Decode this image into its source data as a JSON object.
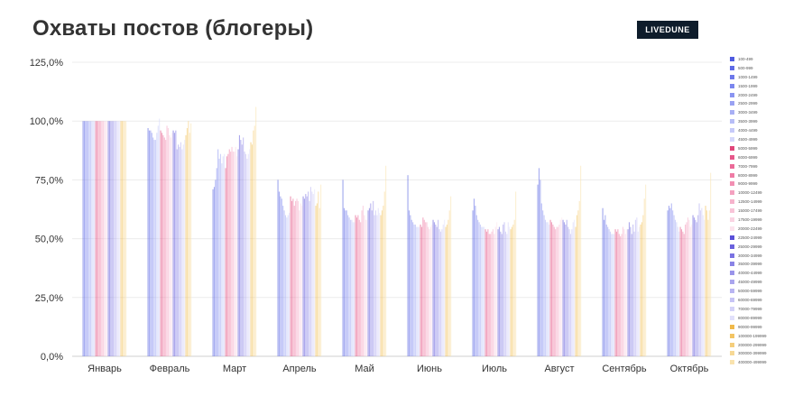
{
  "title": "Охваты постов (блогеры)",
  "brand": "LIVEDUNE",
  "chart_data": {
    "type": "bar",
    "title": "Охваты постов (блогеры)",
    "xlabel": "",
    "ylabel": "",
    "ylim": [
      0,
      125
    ],
    "yticks": [
      "0,0%",
      "25,0%",
      "50,0%",
      "75,0%",
      "100,0%",
      "125,0%"
    ],
    "grid": true,
    "legend_position": "right",
    "categories": [
      "Январь",
      "Февраль",
      "Март",
      "Апрель",
      "Май",
      "Июнь",
      "Июль",
      "Август",
      "Сентябрь",
      "Октябрь"
    ],
    "series": [
      {
        "name": "100-499",
        "color": "#4f5be0",
        "values": [
          100,
          97,
          71,
          75,
          75,
          77,
          62,
          73,
          63,
          62
        ]
      },
      {
        "name": "500-999",
        "color": "#5e6ae6",
        "values": [
          100,
          96,
          72,
          70,
          63,
          62,
          67,
          80,
          58,
          64
        ]
      },
      {
        "name": "1000-1499",
        "color": "#6d78ea",
        "values": [
          100,
          96,
          75,
          68,
          62,
          60,
          64,
          75,
          60,
          63
        ]
      },
      {
        "name": "1500-1999",
        "color": "#7b86ee",
        "values": [
          100,
          95,
          80,
          67,
          62,
          58,
          60,
          65,
          56,
          65
        ]
      },
      {
        "name": "2000-2499",
        "color": "#8a94f1",
        "values": [
          100,
          93,
          88,
          64,
          60,
          57,
          58,
          62,
          55,
          62
        ]
      },
      {
        "name": "2500-2999",
        "color": "#99a1f3",
        "values": [
          100,
          92,
          84,
          62,
          59,
          56,
          57,
          60,
          54,
          60
        ]
      },
      {
        "name": "3000-3499",
        "color": "#a8aff5",
        "values": [
          100,
          92,
          86,
          60,
          58,
          56,
          56,
          58,
          53,
          58
        ]
      },
      {
        "name": "3500-3999",
        "color": "#b7bdf7",
        "values": [
          100,
          95,
          82,
          59,
          58,
          55,
          55,
          57,
          52,
          57
        ]
      },
      {
        "name": "4000-4499",
        "color": "#c6caf9",
        "values": [
          100,
          98,
          85,
          60,
          57,
          55,
          55,
          57,
          52,
          55
        ]
      },
      {
        "name": "4500-4999",
        "color": "#d5d8fb",
        "values": [
          100,
          101,
          86,
          61,
          57,
          55,
          55,
          56,
          52,
          53
        ]
      },
      {
        "name": "5000-5999",
        "color": "#e0467a",
        "values": [
          100,
          96,
          80,
          68,
          60,
          56,
          54,
          58,
          54,
          55
        ]
      },
      {
        "name": "6000-6999",
        "color": "#e6578a",
        "values": [
          100,
          95,
          85,
          66,
          59,
          55,
          53,
          57,
          53,
          54
        ]
      },
      {
        "name": "7000-7999",
        "color": "#eb6a98",
        "values": [
          100,
          94,
          86,
          67,
          60,
          59,
          54,
          56,
          54,
          53
        ]
      },
      {
        "name": "8000-8999",
        "color": "#ef7ca5",
        "values": [
          100,
          93,
          88,
          64,
          58,
          58,
          52,
          55,
          52,
          52
        ]
      },
      {
        "name": "9000-9999",
        "color": "#f28fb3",
        "values": [
          100,
          92,
          87,
          66,
          57,
          57,
          52,
          54,
          51,
          56
        ]
      },
      {
        "name": "10000-12499",
        "color": "#f4a1c0",
        "values": [
          100,
          98,
          89,
          67,
          62,
          57,
          53,
          55,
          52,
          57
        ]
      },
      {
        "name": "12500-14999",
        "color": "#f6b3cc",
        "values": [
          100,
          97,
          87,
          66,
          64,
          55,
          54,
          55,
          55,
          59
        ]
      },
      {
        "name": "15000-17499",
        "color": "#f8c4d8",
        "values": [
          100,
          94,
          87,
          62,
          60,
          54,
          52,
          56,
          54,
          58
        ]
      },
      {
        "name": "17500-19999",
        "color": "#fad4e3",
        "values": [
          100,
          93,
          89,
          65,
          58,
          55,
          55,
          58,
          52,
          55
        ]
      },
      {
        "name": "20000-22499",
        "color": "#fce3ed",
        "values": [
          100,
          95,
          85,
          64,
          58,
          56,
          57,
          59,
          54,
          56
        ]
      },
      {
        "name": "22500-24999",
        "color": "#5a50d8",
        "values": [
          100,
          96,
          88,
          68,
          62,
          58,
          54,
          58,
          54,
          60
        ]
      },
      {
        "name": "25000-29999",
        "color": "#6a61dd",
        "values": [
          100,
          95,
          94,
          67,
          63,
          57,
          55,
          57,
          57,
          59
        ]
      },
      {
        "name": "30000-34999",
        "color": "#7a72e2",
        "values": [
          100,
          96,
          92,
          69,
          65,
          56,
          53,
          56,
          55,
          58
        ]
      },
      {
        "name": "35000-39999",
        "color": "#8a83e6",
        "values": [
          100,
          88,
          90,
          68,
          62,
          55,
          52,
          58,
          52,
          57
        ]
      },
      {
        "name": "40000-44999",
        "color": "#9a94ea",
        "values": [
          100,
          90,
          93,
          70,
          66,
          58,
          56,
          55,
          56,
          60
        ]
      },
      {
        "name": "45000-49999",
        "color": "#aaa5ee",
        "values": [
          100,
          89,
          87,
          66,
          60,
          54,
          57,
          54,
          53,
          65
        ]
      },
      {
        "name": "50000-59999",
        "color": "#b9b5f2",
        "values": [
          100,
          91,
          86,
          72,
          62,
          53,
          53,
          52,
          58,
          62
        ]
      },
      {
        "name": "60000-69999",
        "color": "#c7c4f5",
        "values": [
          100,
          88,
          84,
          70,
          60,
          54,
          52,
          54,
          59,
          63
        ]
      },
      {
        "name": "70000-79999",
        "color": "#d4d2f8",
        "values": [
          100,
          90,
          86,
          69,
          63,
          56,
          57,
          57,
          53,
          60
        ]
      },
      {
        "name": "80000-89999",
        "color": "#e1e0fb",
        "values": [
          100,
          92,
          88,
          71,
          61,
          58,
          55,
          58,
          55,
          58
        ]
      },
      {
        "name": "90000-99999",
        "color": "#f0b94a",
        "values": [
          100,
          94,
          91,
          64,
          60,
          55,
          54,
          55,
          56,
          64
        ]
      },
      {
        "name": "100000-199999",
        "color": "#f3c463",
        "values": [
          100,
          97,
          90,
          65,
          62,
          56,
          55,
          60,
          57,
          62
        ]
      },
      {
        "name": "200000-299999",
        "color": "#f5ce7c",
        "values": [
          100,
          100,
          96,
          70,
          64,
          58,
          56,
          62,
          60,
          58
        ]
      },
      {
        "name": "300000-399999",
        "color": "#f7d995",
        "values": [
          100,
          95,
          98,
          63,
          70,
          62,
          58,
          66,
          67,
          62
        ]
      },
      {
        "name": "400000-499999",
        "color": "#f9e3ae",
        "values": [
          100,
          99,
          106,
          73,
          81,
          68,
          70,
          81,
          73,
          78
        ]
      }
    ]
  }
}
